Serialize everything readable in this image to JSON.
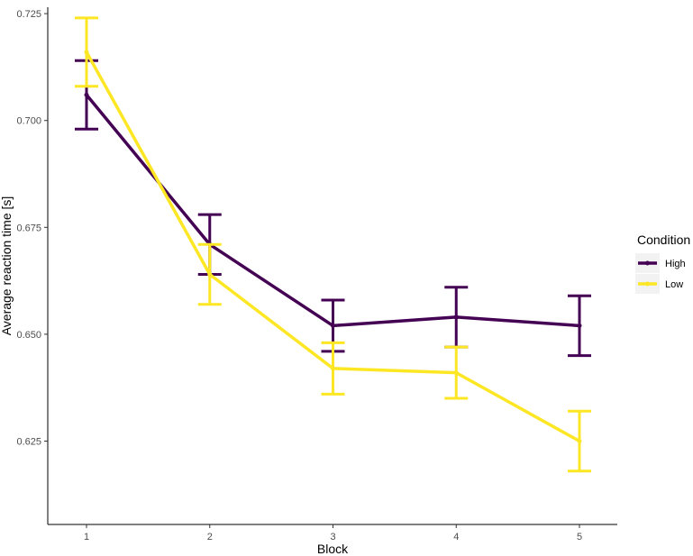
{
  "chart_data": {
    "type": "line",
    "xlabel": "Block",
    "ylabel": "Average reaction time [s]",
    "x": [
      1,
      2,
      3,
      4,
      5
    ],
    "xticks": [
      "1",
      "2",
      "3",
      "4",
      "5"
    ],
    "ylim": [
      0.6055,
      0.7265
    ],
    "yticks": [
      "0.625",
      "0.650",
      "0.675",
      "0.700",
      "0.725"
    ],
    "ytick_values": [
      0.625,
      0.65,
      0.675,
      0.7,
      0.725
    ],
    "grid": false,
    "legend": {
      "title": "Condition",
      "position": "right"
    },
    "series": [
      {
        "name": "High",
        "color": "#440154",
        "values": [
          0.706,
          0.671,
          0.652,
          0.654,
          0.652
        ],
        "error_low": [
          0.698,
          0.664,
          0.646,
          0.647,
          0.645
        ],
        "error_high": [
          0.714,
          0.678,
          0.658,
          0.661,
          0.659
        ]
      },
      {
        "name": "Low",
        "color": "#FDE725",
        "values": [
          0.716,
          0.664,
          0.642,
          0.641,
          0.625
        ],
        "error_low": [
          0.708,
          0.657,
          0.636,
          0.635,
          0.618
        ],
        "error_high": [
          0.724,
          0.671,
          0.648,
          0.647,
          0.632
        ]
      }
    ]
  }
}
